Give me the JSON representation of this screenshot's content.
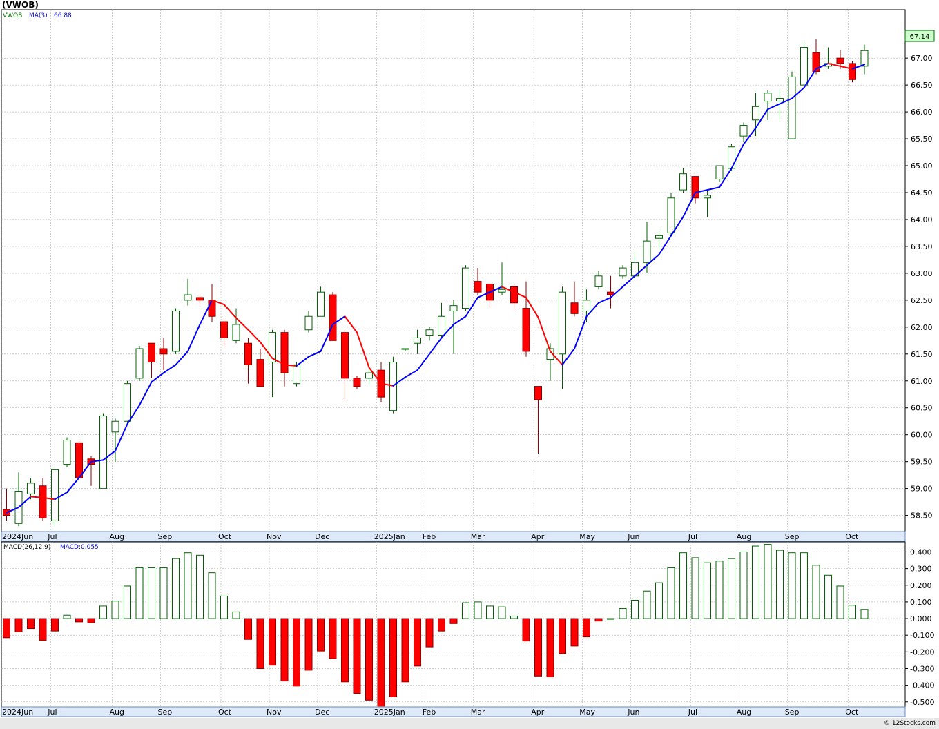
{
  "header": {
    "title": "(VWOB)",
    "credit": "© 12Stocks.com"
  },
  "price_panel": {
    "legend_symbol": "VWOB",
    "legend_ma": "MA(3)",
    "legend_ma_value": "66.88",
    "last_price_label": "67.14"
  },
  "macd_panel": {
    "legend_name": "MACD(26,12,9)",
    "legend_value": "MACD:0.055"
  },
  "colors": {
    "up_fill": "#ffffff",
    "up_stroke": "#006400",
    "down_fill": "#ff0000",
    "down_stroke": "#8b0000",
    "ma_rising": "#0000ff",
    "ma_falling": "#ff0000",
    "axis_band": "#dde8f8",
    "grid": "#aaaaaa"
  },
  "chart_data": [
    {
      "type": "candlestick",
      "title": "(VWOB)",
      "frequency": "weekly",
      "ylim": [
        58.2,
        67.9
      ],
      "y_ticks": [
        "58.50",
        "59.00",
        "59.50",
        "60.00",
        "60.50",
        "61.00",
        "61.50",
        "62.00",
        "62.50",
        "63.00",
        "63.50",
        "64.00",
        "64.50",
        "65.00",
        "65.50",
        "66.00",
        "66.50",
        "67.00"
      ],
      "x_tick_labels": [
        "2024Jun",
        "Jul",
        "Aug",
        "Sep",
        "Oct",
        "Nov",
        "Dec",
        "2025Jan",
        "Feb",
        "Mar",
        "Apr",
        "May",
        "Jun",
        "Jul",
        "Aug",
        "Sep",
        "Oct"
      ],
      "x_tick_week_index": [
        0,
        4.1,
        9.2,
        13.2,
        18.2,
        22.2,
        26.2,
        31.1,
        35.1,
        39.1,
        44.1,
        48.1,
        52.1,
        57.1,
        61.1,
        65.1,
        70.1
      ],
      "candles": [
        {
          "o": 58.61,
          "h": 59.0,
          "l": 58.4,
          "c": 58.5
        },
        {
          "o": 58.35,
          "h": 59.3,
          "l": 58.3,
          "c": 58.95
        },
        {
          "o": 58.9,
          "h": 59.2,
          "l": 58.8,
          "c": 59.1
        },
        {
          "o": 59.05,
          "h": 59.2,
          "l": 58.4,
          "c": 58.45
        },
        {
          "o": 58.4,
          "h": 59.4,
          "l": 58.3,
          "c": 59.35
        },
        {
          "o": 59.45,
          "h": 59.95,
          "l": 59.4,
          "c": 59.9
        },
        {
          "o": 59.85,
          "h": 59.9,
          "l": 59.15,
          "c": 59.2
        },
        {
          "o": 59.55,
          "h": 59.6,
          "l": 59.05,
          "c": 59.45
        },
        {
          "o": 59.0,
          "h": 60.4,
          "l": 59.0,
          "c": 60.35
        },
        {
          "o": 60.05,
          "h": 60.3,
          "l": 59.5,
          "c": 60.25
        },
        {
          "o": 60.25,
          "h": 61.0,
          "l": 60.2,
          "c": 60.95
        },
        {
          "o": 61.05,
          "h": 61.65,
          "l": 61.0,
          "c": 61.6
        },
        {
          "o": 61.7,
          "h": 61.7,
          "l": 61.05,
          "c": 61.35
        },
        {
          "o": 61.6,
          "h": 61.8,
          "l": 61.2,
          "c": 61.5
        },
        {
          "o": 61.55,
          "h": 62.35,
          "l": 61.5,
          "c": 62.3
        },
        {
          "o": 62.5,
          "h": 62.9,
          "l": 62.4,
          "c": 62.6
        },
        {
          "o": 62.55,
          "h": 62.6,
          "l": 62.4,
          "c": 62.5
        },
        {
          "o": 62.5,
          "h": 62.8,
          "l": 62.1,
          "c": 62.2
        },
        {
          "o": 62.1,
          "h": 62.15,
          "l": 61.65,
          "c": 61.8
        },
        {
          "o": 61.75,
          "h": 62.35,
          "l": 61.7,
          "c": 62.05
        },
        {
          "o": 61.7,
          "h": 61.8,
          "l": 60.95,
          "c": 61.3
        },
        {
          "o": 61.4,
          "h": 61.6,
          "l": 60.9,
          "c": 60.9
        },
        {
          "o": 61.35,
          "h": 61.95,
          "l": 60.7,
          "c": 61.9
        },
        {
          "o": 61.9,
          "h": 61.95,
          "l": 60.9,
          "c": 61.15
        },
        {
          "o": 60.95,
          "h": 61.35,
          "l": 60.9,
          "c": 61.3
        },
        {
          "o": 61.95,
          "h": 62.3,
          "l": 61.9,
          "c": 62.2
        },
        {
          "o": 62.2,
          "h": 62.75,
          "l": 62.2,
          "c": 62.65
        },
        {
          "o": 62.6,
          "h": 62.65,
          "l": 61.75,
          "c": 61.75
        },
        {
          "o": 61.9,
          "h": 61.95,
          "l": 60.65,
          "c": 61.05
        },
        {
          "o": 61.05,
          "h": 61.1,
          "l": 60.85,
          "c": 60.9
        },
        {
          "o": 61.05,
          "h": 61.35,
          "l": 60.95,
          "c": 61.15
        },
        {
          "o": 61.2,
          "h": 61.35,
          "l": 60.6,
          "c": 60.7
        },
        {
          "o": 60.45,
          "h": 61.45,
          "l": 60.4,
          "c": 61.35
        },
        {
          "o": 61.6,
          "h": 61.6,
          "l": 61.55,
          "c": 61.6
        },
        {
          "o": 61.7,
          "h": 61.95,
          "l": 61.5,
          "c": 61.8
        },
        {
          "o": 61.85,
          "h": 62.0,
          "l": 61.75,
          "c": 61.95
        },
        {
          "o": 61.85,
          "h": 62.45,
          "l": 61.8,
          "c": 62.2
        },
        {
          "o": 62.3,
          "h": 62.5,
          "l": 61.5,
          "c": 62.4
        },
        {
          "o": 62.35,
          "h": 63.15,
          "l": 62.3,
          "c": 63.1
        },
        {
          "o": 62.85,
          "h": 63.1,
          "l": 62.6,
          "c": 62.65
        },
        {
          "o": 62.8,
          "h": 62.8,
          "l": 62.35,
          "c": 62.5
        },
        {
          "o": 62.65,
          "h": 63.2,
          "l": 62.6,
          "c": 62.7
        },
        {
          "o": 62.75,
          "h": 62.8,
          "l": 62.3,
          "c": 62.45
        },
        {
          "o": 62.35,
          "h": 62.85,
          "l": 61.45,
          "c": 61.55
        },
        {
          "o": 60.9,
          "h": 60.9,
          "l": 59.65,
          "c": 60.65
        },
        {
          "o": 61.4,
          "h": 61.7,
          "l": 61.0,
          "c": 61.6
        },
        {
          "o": 61.5,
          "h": 62.75,
          "l": 60.85,
          "c": 62.65
        },
        {
          "o": 62.45,
          "h": 62.85,
          "l": 62.2,
          "c": 62.25
        },
        {
          "o": 62.3,
          "h": 62.7,
          "l": 62.1,
          "c": 62.5
        },
        {
          "o": 62.75,
          "h": 63.05,
          "l": 62.7,
          "c": 62.95
        },
        {
          "o": 62.65,
          "h": 62.95,
          "l": 62.35,
          "c": 62.6
        },
        {
          "o": 62.95,
          "h": 63.15,
          "l": 62.9,
          "c": 63.1
        },
        {
          "o": 62.95,
          "h": 63.4,
          "l": 62.9,
          "c": 63.2
        },
        {
          "o": 63.2,
          "h": 63.95,
          "l": 63.0,
          "c": 63.6
        },
        {
          "o": 63.65,
          "h": 63.8,
          "l": 63.45,
          "c": 63.7
        },
        {
          "o": 63.75,
          "h": 64.5,
          "l": 63.7,
          "c": 64.4
        },
        {
          "o": 64.55,
          "h": 64.95,
          "l": 64.5,
          "c": 64.85
        },
        {
          "o": 64.8,
          "h": 64.8,
          "l": 64.3,
          "c": 64.4
        },
        {
          "o": 64.4,
          "h": 64.55,
          "l": 64.05,
          "c": 64.45
        },
        {
          "o": 64.75,
          "h": 65.0,
          "l": 64.7,
          "c": 65.0
        },
        {
          "o": 64.95,
          "h": 65.4,
          "l": 64.9,
          "c": 65.35
        },
        {
          "o": 65.55,
          "h": 65.8,
          "l": 65.45,
          "c": 65.75
        },
        {
          "o": 65.85,
          "h": 66.35,
          "l": 65.55,
          "c": 66.1
        },
        {
          "o": 66.2,
          "h": 66.4,
          "l": 65.85,
          "c": 66.35
        },
        {
          "o": 66.2,
          "h": 66.4,
          "l": 65.85,
          "c": 66.25
        },
        {
          "o": 65.5,
          "h": 66.75,
          "l": 65.5,
          "c": 66.65
        },
        {
          "o": 66.5,
          "h": 67.3,
          "l": 66.5,
          "c": 67.2
        },
        {
          "o": 67.1,
          "h": 67.35,
          "l": 66.7,
          "c": 66.75
        },
        {
          "o": 66.85,
          "h": 67.2,
          "l": 66.8,
          "c": 66.9
        },
        {
          "o": 67.0,
          "h": 67.15,
          "l": 66.8,
          "c": 66.9
        },
        {
          "o": 66.9,
          "h": 66.95,
          "l": 66.55,
          "c": 66.6
        },
        {
          "o": 66.85,
          "h": 67.25,
          "l": 66.7,
          "c": 67.14
        }
      ],
      "ma3": [
        58.55,
        58.65,
        58.85,
        58.83,
        58.8,
        58.93,
        59.2,
        59.5,
        59.53,
        59.7,
        60.2,
        60.55,
        60.98,
        61.15,
        61.3,
        61.55,
        62.05,
        62.5,
        62.42,
        62.17,
        61.95,
        61.72,
        61.42,
        61.3,
        61.28,
        61.45,
        61.55,
        62.05,
        62.2,
        61.9,
        61.25,
        60.95,
        60.91,
        61.07,
        61.2,
        61.5,
        61.8,
        62.05,
        62.2,
        62.55,
        62.65,
        62.75,
        62.65,
        62.55,
        62.18,
        61.55,
        61.3,
        61.6,
        62.2,
        62.45,
        62.55,
        62.75,
        62.95,
        63.15,
        63.35,
        63.7,
        64.05,
        64.5,
        64.55,
        64.6,
        64.95,
        65.4,
        65.7,
        66.05,
        66.15,
        66.25,
        66.45,
        66.8,
        66.9,
        66.85,
        66.8,
        66.88
      ]
    },
    {
      "type": "bar",
      "title": "MACD(26,12,9)",
      "ylim": [
        -0.53,
        0.46
      ],
      "y_ticks": [
        "-0.500",
        "-0.400",
        "-0.300",
        "-0.200",
        "-0.100",
        "0.000",
        "0.100",
        "0.200",
        "0.300",
        "0.400"
      ],
      "values": [
        -0.115,
        -0.08,
        -0.06,
        -0.13,
        -0.075,
        0.02,
        -0.02,
        -0.025,
        0.075,
        0.105,
        0.195,
        0.305,
        0.305,
        0.305,
        0.36,
        0.395,
        0.38,
        0.275,
        0.135,
        0.04,
        -0.125,
        -0.3,
        -0.28,
        -0.375,
        -0.405,
        -0.31,
        -0.195,
        -0.24,
        -0.38,
        -0.45,
        -0.49,
        -0.525,
        -0.47,
        -0.38,
        -0.285,
        -0.17,
        -0.075,
        -0.03,
        0.095,
        0.1,
        0.075,
        0.07,
        0.015,
        -0.135,
        -0.345,
        -0.35,
        -0.21,
        -0.165,
        -0.11,
        -0.015,
        0.0,
        0.06,
        0.11,
        0.165,
        0.215,
        0.305,
        0.395,
        0.365,
        0.335,
        0.345,
        0.36,
        0.4,
        0.435,
        0.445,
        0.41,
        0.395,
        0.395,
        0.32,
        0.26,
        0.195,
        0.08,
        0.055
      ]
    }
  ]
}
